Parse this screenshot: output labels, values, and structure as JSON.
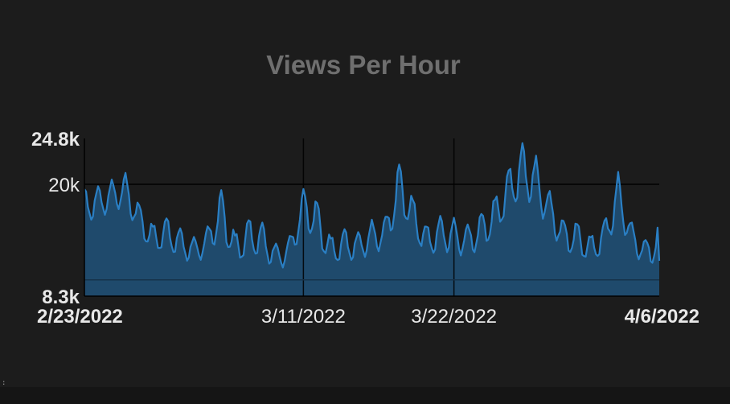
{
  "chart_data": {
    "type": "area",
    "title": "Views Per Hour",
    "xlabel": "",
    "ylabel": "",
    "ylim": [
      8300,
      24800
    ],
    "y_ticks": [
      {
        "value": 24800,
        "label": "24.8k",
        "bold": true
      },
      {
        "value": 20000,
        "label": "20k",
        "bold": false
      },
      {
        "value": 8300,
        "label": "8.3k",
        "bold": true
      }
    ],
    "x_ticks": [
      {
        "date": "2022-02-23",
        "label": "2/23/2022",
        "bold": true
      },
      {
        "date": "2022-03-11",
        "label": "3/11/2022",
        "bold": false
      },
      {
        "date": "2022-03-22",
        "label": "3/22/2022",
        "bold": false
      },
      {
        "date": "2022-04-06",
        "label": "4/6/2022",
        "bold": true
      }
    ],
    "reference_line_y": 10000,
    "grid": true,
    "legend": "none",
    "colors": {
      "line": "#2a7fc4",
      "fill": "#1f4a6c",
      "grid": "#000000",
      "axis_text": "#e8e8e8",
      "title": "#6f6f6f",
      "background": "#1c1c1c"
    },
    "series": [
      {
        "x": [
          "2022-02-23",
          "2022-02-24",
          "2022-02-25",
          "2022-02-26",
          "2022-02-27",
          "2022-02-28",
          "2022-03-01",
          "2022-03-02",
          "2022-03-03",
          "2022-03-04",
          "2022-03-05",
          "2022-03-06",
          "2022-03-07",
          "2022-03-08",
          "2022-03-09",
          "2022-03-10",
          "2022-03-11",
          "2022-03-12",
          "2022-03-13",
          "2022-03-14",
          "2022-03-15",
          "2022-03-16",
          "2022-03-17",
          "2022-03-18",
          "2022-03-19",
          "2022-03-20",
          "2022-03-21",
          "2022-03-22",
          "2022-03-23",
          "2022-03-24",
          "2022-03-25",
          "2022-03-26",
          "2022-03-27",
          "2022-03-28",
          "2022-03-29",
          "2022-03-30",
          "2022-03-31",
          "2022-04-01",
          "2022-04-02",
          "2022-04-03",
          "2022-04-04",
          "2022-04-05",
          "2022-04-06"
        ],
        "values": [
          19500,
          19800,
          20500,
          21200,
          18000,
          15800,
          16500,
          15400,
          14500,
          15600,
          19600,
          14900,
          16400,
          16000,
          13800,
          14600,
          19600,
          18400,
          14500,
          15300,
          15000,
          16300,
          16600,
          22400,
          18600,
          15600,
          16700,
          16500,
          15800,
          17100,
          18700,
          21600,
          24300,
          23000,
          19300,
          16300,
          16100,
          14600,
          16200,
          21300,
          16000,
          14200,
          16000
        ],
        "lows": [
          16200,
          16400,
          17200,
          17600,
          14900,
          12800,
          13400,
          12300,
          11700,
          12500,
          14900,
          11600,
          12700,
          12500,
          10900,
          11700,
          15800,
          13800,
          11600,
          12200,
          12000,
          12800,
          13200,
          17500,
          14800,
          12400,
          13200,
          12600,
          12500,
          13300,
          14700,
          17300,
          18800,
          17500,
          15300,
          12900,
          12700,
          11800,
          12900,
          16600,
          12800,
          11500,
          12000
        ]
      }
    ]
  },
  "footer": {
    "corner_mark": ":"
  }
}
